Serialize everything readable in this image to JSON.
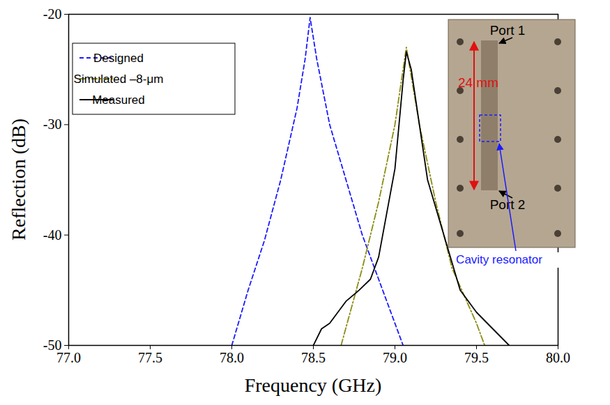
{
  "chart_data": {
    "type": "line",
    "x_label": "Frequency (GHz)",
    "y_label": "Reflection (dB)",
    "xlim": [
      77,
      80
    ],
    "ylim": [
      -50,
      -20
    ],
    "xticks": [
      {
        "value": 77,
        "label": "77.0"
      },
      {
        "value": 77.5,
        "label": "77.5"
      },
      {
        "value": 78,
        "label": "78.0"
      },
      {
        "value": 78.5,
        "label": "78.5"
      },
      {
        "value": 79,
        "label": "79.0"
      },
      {
        "value": 79.5,
        "label": "79.5"
      },
      {
        "value": 80,
        "label": "80.0"
      }
    ],
    "yticks": [
      -50,
      -40,
      -30,
      -20
    ],
    "grid": false,
    "legend": "top-left",
    "series": [
      {
        "name": "Designed",
        "color": "#1a1aff",
        "line_style": "dashed",
        "x": [
          78.0,
          78.1,
          78.2,
          78.3,
          78.4,
          78.45,
          78.48,
          78.52,
          78.6,
          78.7,
          78.8,
          78.9,
          79.0,
          79.05
        ],
        "values": [
          -50,
          -45,
          -40.5,
          -35,
          -28.5,
          -24,
          -20.3,
          -24,
          -30,
          -35,
          -40,
          -44,
          -48,
          -50
        ]
      },
      {
        "name": "Simulated –8-μm",
        "color": "#8c8c14",
        "line_style": "dashdot",
        "x": [
          78.67,
          78.8,
          78.9,
          79.0,
          79.07,
          79.15,
          79.25,
          79.35,
          79.5,
          79.55
        ],
        "values": [
          -50,
          -43,
          -37,
          -30,
          -23,
          -30,
          -37,
          -43,
          -48,
          -50
        ]
      },
      {
        "name": "Measured",
        "color": "#000000",
        "line_style": "solid",
        "x": [
          78.5,
          78.55,
          78.6,
          78.7,
          78.78,
          78.85,
          78.9,
          79.0,
          79.05,
          79.07,
          79.1,
          79.15,
          79.2,
          79.3,
          79.4,
          79.5,
          79.6,
          79.7
        ],
        "values": [
          -50,
          -48.5,
          -48,
          -46,
          -45,
          -44,
          -42,
          -34,
          -26,
          -23.4,
          -25,
          -30,
          -35,
          -40,
          -45,
          -47,
          -48.5,
          -50
        ]
      }
    ],
    "annotations": [
      "Port 1",
      "24 mm",
      "Cavity resonator",
      "Port 2"
    ]
  }
}
